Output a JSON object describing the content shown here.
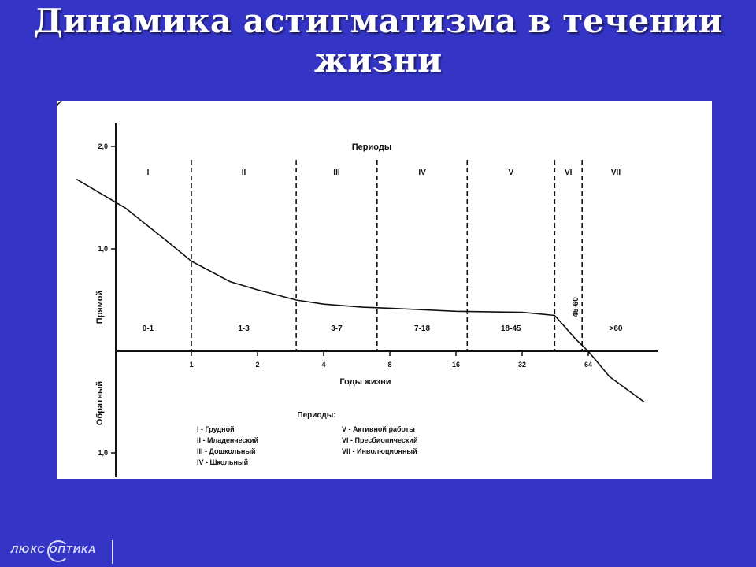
{
  "slide": {
    "title_line1": "Динамика астигматизма в течении",
    "title_line2": "жизни"
  },
  "logo": {
    "text": "ЛЮКС ОПТИКА"
  },
  "chart_data": {
    "type": "line",
    "top_label": "Периоды",
    "xlabel": "Годы жизни",
    "ylabel_pos": "Прямой",
    "ylabel_neg": "Обратный",
    "y_ticks": [
      "2,0",
      "1,0",
      "1,0"
    ],
    "y_tick_values": [
      2.0,
      1.0,
      -1.0
    ],
    "x_ticks": [
      "1",
      "2",
      "4",
      "8",
      "16",
      "32",
      "64"
    ],
    "x_tick_values": [
      1,
      2,
      4,
      8,
      16,
      32,
      64
    ],
    "period_numerals": [
      "I",
      "II",
      "III",
      "IV",
      "V",
      "VI",
      "VII"
    ],
    "age_ranges": [
      "0-1",
      "1-3",
      "3-7",
      "7-18",
      "18-45",
      "45-60",
      ">60"
    ],
    "boundary_ages": [
      1,
      3,
      7,
      18,
      45,
      60
    ],
    "rotated_range_label": "45-60",
    "series": [
      {
        "x": [
          0.3,
          0.5,
          0.75,
          1,
          1.5,
          2,
          3,
          4,
          6,
          8,
          16,
          32,
          45,
          50,
          56,
          64,
          80,
          115
        ],
        "y": [
          1.68,
          1.4,
          1.1,
          0.88,
          0.68,
          0.6,
          0.5,
          0.46,
          0.43,
          0.42,
          0.39,
          0.38,
          0.35,
          0.24,
          0.12,
          0.0,
          -0.25,
          -0.5
        ]
      }
    ],
    "legend": {
      "heading": "Периоды:",
      "left": [
        "I - Грудной",
        "II - Младенческий",
        "III - Дошкольный",
        "IV - Школьный"
      ],
      "right": [
        "V - Активной работы",
        "VI - Пресбиопический",
        "VII - Инволюционный"
      ]
    }
  }
}
